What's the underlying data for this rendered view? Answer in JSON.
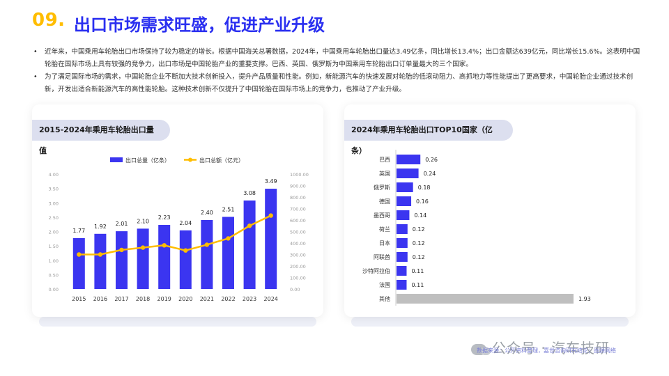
{
  "header": {
    "number": "09.",
    "title": "出口市场需求旺盛，促进产业升级"
  },
  "bullets": [
    "近年来，中国乘用车轮胎出口市场保持了较为稳定的增长。根据中国海关总署数据，2024年，中国乘用车轮胎出口量达3.49亿条，同比增长13.4%；出口金额达639亿元，同比增长15.6%。这表明中国轮胎在国际市场上具有较强的竞争力，出口市场是中国轮胎产业的重要支撑。巴西、英国、俄罗斯为中国乘用车轮胎出口订单量最大的三个国家。",
    "为了满足国际市场的需求，中国轮胎企业不断加大技术创新投入，提升产品质量和性能。例如，新能源汽车的快速发展对轮胎的低滚动阻力、高抓地力等性能提出了更高要求，中国轮胎企业通过技术创新，开发出适合新能源汽车的高性能轮胎。这种技术创新不仅提升了中国轮胎在国际市场上的竞争力，也推动了产业升级。"
  ],
  "colors": {
    "accent_blue": "#3b35f0",
    "accent_yellow": "#ffbd00",
    "title_blue": "#2a2ff0",
    "other_gray": "#bfbfbf"
  },
  "chart_data": [
    {
      "type": "bar",
      "title": "2015-2024年乘用车轮胎出口量值",
      "categories": [
        "2015",
        "2016",
        "2017",
        "2018",
        "2019",
        "2020",
        "2021",
        "2022",
        "2023",
        "2024"
      ],
      "series": [
        {
          "name": "出口总量（亿条）",
          "kind": "bar",
          "axis": "left",
          "values": [
            1.77,
            1.92,
            2.01,
            2.1,
            2.23,
            2.04,
            2.4,
            2.51,
            3.08,
            3.49
          ]
        },
        {
          "name": "出口总额（亿元）",
          "kind": "line",
          "axis": "right",
          "values": [
            300,
            300,
            340,
            360,
            380,
            335,
            385,
            440,
            550,
            639
          ]
        }
      ],
      "y_left": {
        "ylim": [
          0,
          4
        ],
        "ticks": [
          "0.00",
          "0.50",
          "1.00",
          "1.50",
          "2.00",
          "2.50",
          "3.00",
          "3.50",
          "4.00"
        ]
      },
      "y_right": {
        "ylim": [
          0,
          1000
        ],
        "ticks": [
          "0.00",
          "100.00",
          "200.00",
          "300.00",
          "400.00",
          "500.00",
          "600.00",
          "700.00",
          "800.00",
          "900.00",
          "1000.00"
        ]
      },
      "legend": "top"
    },
    {
      "type": "bar",
      "orientation": "horizontal",
      "title": "2024年乘用车轮胎出口TOP10国家（亿条）",
      "categories": [
        "巴西",
        "英国",
        "俄罗斯",
        "德国",
        "墨西哥",
        "荷兰",
        "日本",
        "阿联酋",
        "沙特阿拉伯",
        "法国",
        "其他"
      ],
      "values": [
        0.26,
        0.24,
        0.18,
        0.16,
        0.14,
        0.12,
        0.12,
        0.12,
        0.11,
        0.11,
        1.93
      ],
      "value_labels": [
        "0.26",
        "0.24",
        "0.18",
        "0.16",
        "0.14",
        "0.12",
        "0.12",
        "0.12",
        "0.11",
        "0.11",
        "1.93"
      ]
    }
  ],
  "footer": {
    "credits": "数据来源：公开资料整理，嘉世咨询研究结论；图源网络",
    "wechat": "公众号 · 汽车技研"
  }
}
